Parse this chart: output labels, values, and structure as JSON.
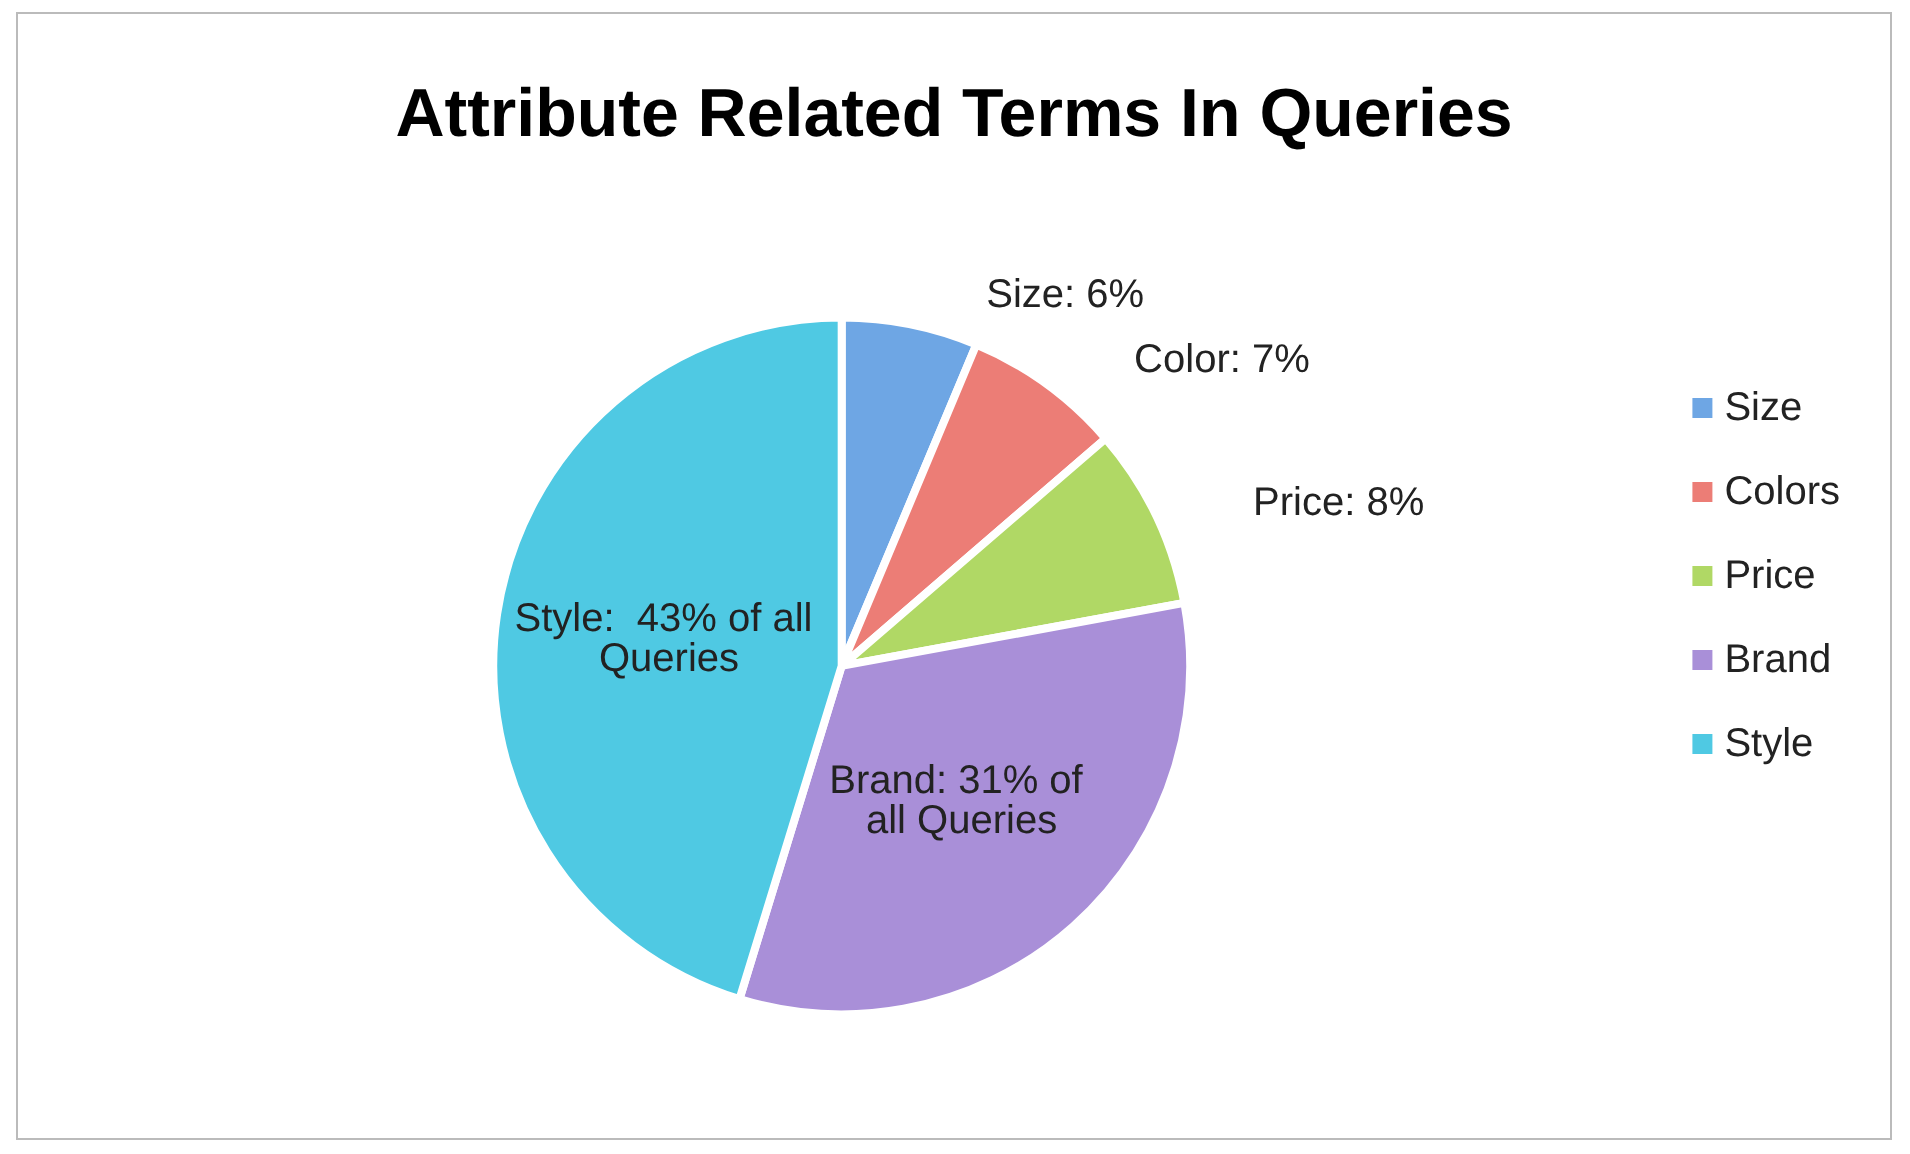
{
  "chart_data": {
    "type": "pie",
    "title": "Attribute Related Terms In Queries",
    "categories": [
      "Size",
      "Colors",
      "Price",
      "Brand",
      "Style"
    ],
    "values": [
      6,
      7,
      8,
      31,
      43
    ],
    "value_labels": [
      "Size: 6%",
      "Color: 7%",
      "Price: 8%",
      "Brand: 31% of all Queries",
      "Style:  43% of all Queries"
    ],
    "colors": [
      "#6ea6e4",
      "#ec7d76",
      "#b0d865",
      "#a98fd8",
      "#4fc9e3"
    ],
    "legend": "right"
  }
}
